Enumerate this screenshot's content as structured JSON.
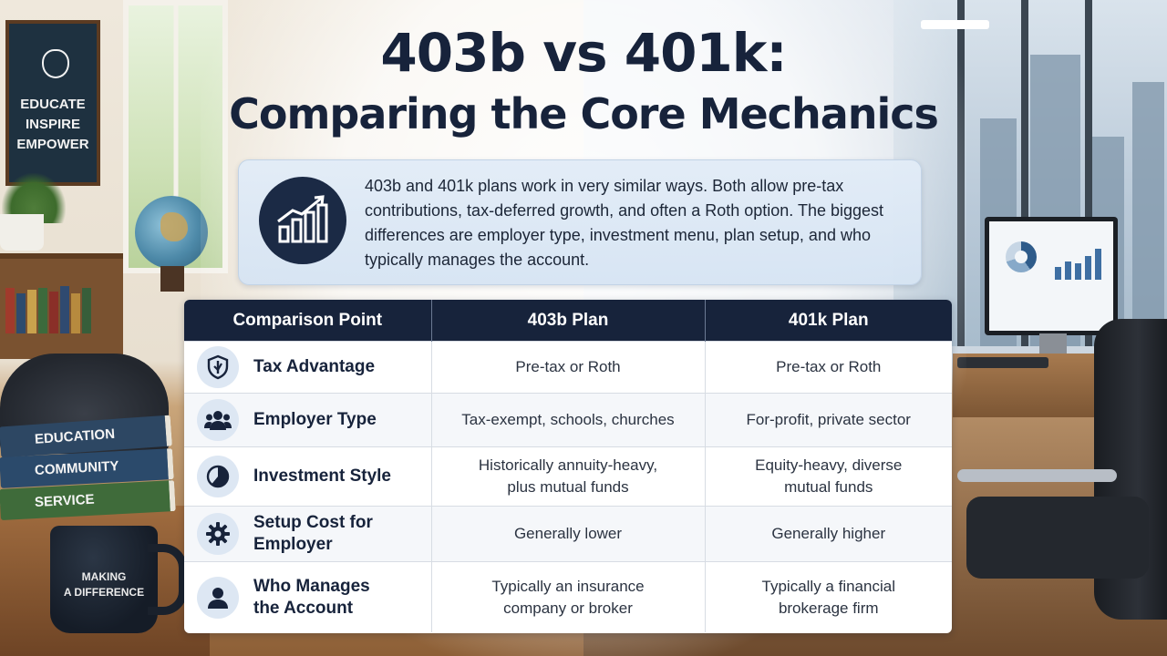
{
  "title": {
    "line1": "403b vs 401k:",
    "line2": "Comparing the Core Mechanics"
  },
  "intro": {
    "icon": "growth-chart-icon",
    "text": "403b and 401k plans work in very similar ways. Both allow pre-tax contributions, tax-deferred growth, and often a Roth option. The biggest differences are employer type, investment menu, plan setup, and who typically manages the account."
  },
  "table": {
    "headers": [
      "Comparison Point",
      "403b Plan",
      "401k Plan"
    ],
    "rows": [
      {
        "icon": "shield-icon",
        "point": "Tax Advantage",
        "plan403b": "Pre-tax or Roth",
        "plan401k": "Pre-tax or Roth"
      },
      {
        "icon": "people-icon",
        "point": "Employer Type",
        "plan403b": "Tax-exempt, schools, churches",
        "plan401k": "For-profit, private sector"
      },
      {
        "icon": "pie-chart-icon",
        "point": "Investment Style",
        "plan403b": "Historically annuity-heavy,\nplus mutual funds",
        "plan401k": "Equity-heavy, diverse\nmutual funds"
      },
      {
        "icon": "gear-icon",
        "point": "Setup Cost for\nEmployer",
        "plan403b": "Generally lower",
        "plan401k": "Generally higher"
      },
      {
        "icon": "person-icon",
        "point": "Who Manages\nthe Account",
        "plan403b": "Typically an insurance\ncompany or broker",
        "plan401k": "Typically a financial\nbrokerage firm"
      }
    ]
  },
  "background": {
    "board_lines": [
      "EDUCATE",
      "INSPIRE",
      "EMPOWER"
    ],
    "books": [
      "EDUCATION",
      "COMMUNITY",
      "SERVICE"
    ],
    "mug_lines": [
      "MAKING",
      "A DIFFERENCE"
    ]
  },
  "colors": {
    "navy": "#17233b",
    "intro_bg": "#dbe8f5",
    "icon_circle": "#dde7f3"
  }
}
